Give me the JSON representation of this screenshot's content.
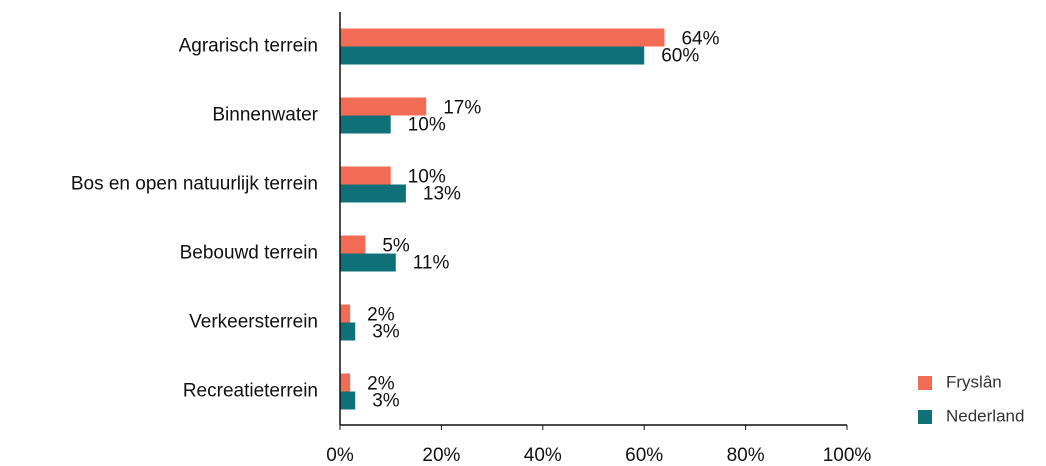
{
  "chart_data": {
    "type": "bar",
    "orientation": "horizontal",
    "categories": [
      "Agrarisch terrein",
      "Binnenwater",
      "Bos en open natuurlijk terrein",
      "Bebouwd terrein",
      "Verkeersterrein",
      "Recreatieterrein"
    ],
    "series": [
      {
        "name": "Fryslân",
        "color": "#f26b55",
        "values": [
          64,
          17,
          10,
          5,
          2,
          2
        ],
        "value_labels": [
          "64%",
          "17%",
          "10%",
          "5%",
          "2%",
          "2%"
        ]
      },
      {
        "name": "Nederland",
        "color": "#0f7078",
        "values": [
          60,
          10,
          13,
          11,
          3,
          3
        ],
        "value_labels": [
          "60%",
          "10%",
          "13%",
          "11%",
          "3%",
          "3%"
        ]
      }
    ],
    "xlim": [
      0,
      100
    ],
    "xticks": [
      {
        "value": 0,
        "label": "0%"
      },
      {
        "value": 20,
        "label": "20%"
      },
      {
        "value": 40,
        "label": "40%"
      },
      {
        "value": 60,
        "label": "60%"
      },
      {
        "value": 80,
        "label": "80%"
      },
      {
        "value": 100,
        "label": "100%"
      }
    ],
    "legend": "bottom-right"
  }
}
